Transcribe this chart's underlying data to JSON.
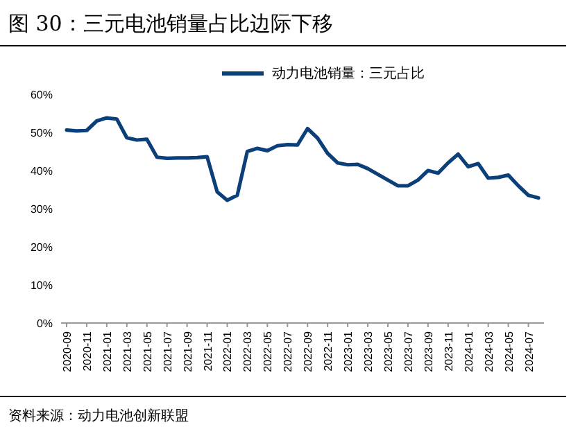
{
  "chart_data": {
    "type": "line",
    "title": "图 30：三元电池销量占比边际下移",
    "categories": [
      "2020-09",
      null,
      "2020-11",
      null,
      "2021-01",
      null,
      "2021-03",
      null,
      "2021-05",
      null,
      "2021-07",
      null,
      "2021-09",
      null,
      "2021-11",
      null,
      "2022-01",
      null,
      "2022-03",
      null,
      "2022-05",
      null,
      "2022-07",
      null,
      "2022-09",
      null,
      "2022-11",
      null,
      "2023-01",
      null,
      "2023-03",
      null,
      "2023-05",
      null,
      "2023-07",
      null,
      "2023-09",
      null,
      "2023-11",
      null,
      "2024-01",
      null,
      "2024-03",
      null,
      "2024-05",
      null,
      "2024-07",
      null
    ],
    "series": [
      {
        "name": "动力电池销量：三元占比",
        "color": "#0b3f7a",
        "values": [
          50.6,
          50.4,
          50.5,
          53.0,
          53.8,
          53.5,
          48.6,
          48.0,
          48.2,
          43.5,
          43.2,
          43.3,
          43.3,
          43.4,
          43.6,
          34.4,
          32.2,
          33.5,
          45.0,
          45.8,
          45.2,
          46.5,
          46.8,
          46.7,
          51.0,
          48.5,
          44.5,
          42.0,
          41.5,
          41.6,
          40.5,
          39.0,
          37.5,
          36.0,
          36.0,
          37.5,
          40.0,
          39.3,
          42.0,
          44.3,
          41.0,
          41.8,
          38.0,
          38.2,
          38.8,
          36.0,
          33.5,
          32.8
        ]
      }
    ],
    "ylim": [
      0,
      60
    ],
    "yticks": [
      {
        "value": 0,
        "label": "0%"
      },
      {
        "value": 10,
        "label": "10%"
      },
      {
        "value": 20,
        "label": "20%"
      },
      {
        "value": 30,
        "label": "30%"
      },
      {
        "value": 40,
        "label": "40%"
      },
      {
        "value": 50,
        "label": "50%"
      },
      {
        "value": 60,
        "label": "60%"
      }
    ],
    "legend": "top",
    "annotations": [
      "资料来源：动力电池创新联盟"
    ]
  }
}
